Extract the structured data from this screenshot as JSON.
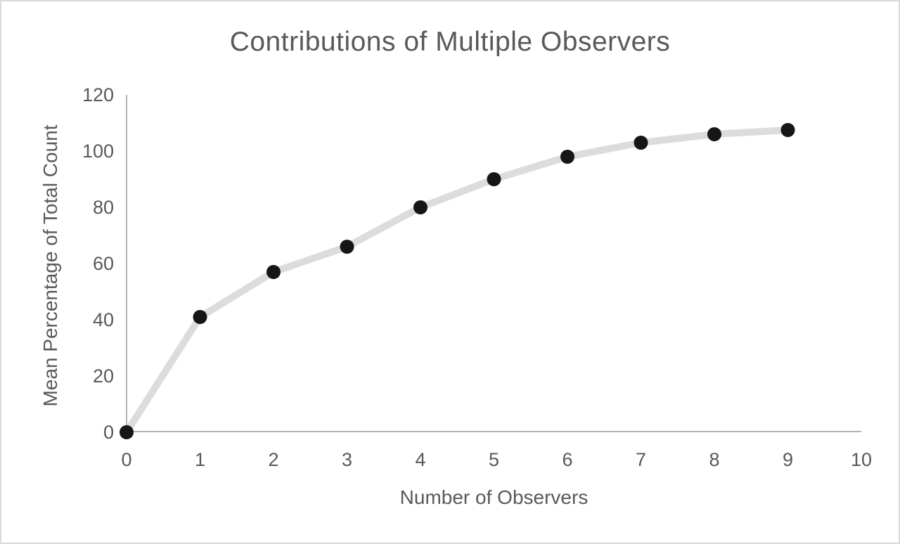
{
  "window": {
    "background": "#ffffff",
    "border_color": "#d9d9d9"
  },
  "chart_data": {
    "type": "line",
    "title": "Contributions of Multiple Observers",
    "xlabel": "Number of Observers",
    "ylabel": "Mean Percentage of Total Count",
    "x": [
      0,
      1,
      2,
      3,
      4,
      5,
      6,
      7,
      8,
      9
    ],
    "y": [
      0,
      41,
      57,
      66,
      80,
      90,
      98,
      103,
      106,
      107.5
    ],
    "xlim": [
      0,
      10
    ],
    "ylim": [
      0,
      120
    ],
    "xticks": [
      0,
      1,
      2,
      3,
      4,
      5,
      6,
      7,
      8,
      9,
      10
    ],
    "yticks": [
      0,
      20,
      40,
      60,
      80,
      100,
      120
    ],
    "grid": false,
    "legend": false,
    "colors": {
      "series_line": "#dcdcdc",
      "marker": "#161616",
      "axis_line": "#b3b3b3",
      "text": "#595959"
    }
  }
}
